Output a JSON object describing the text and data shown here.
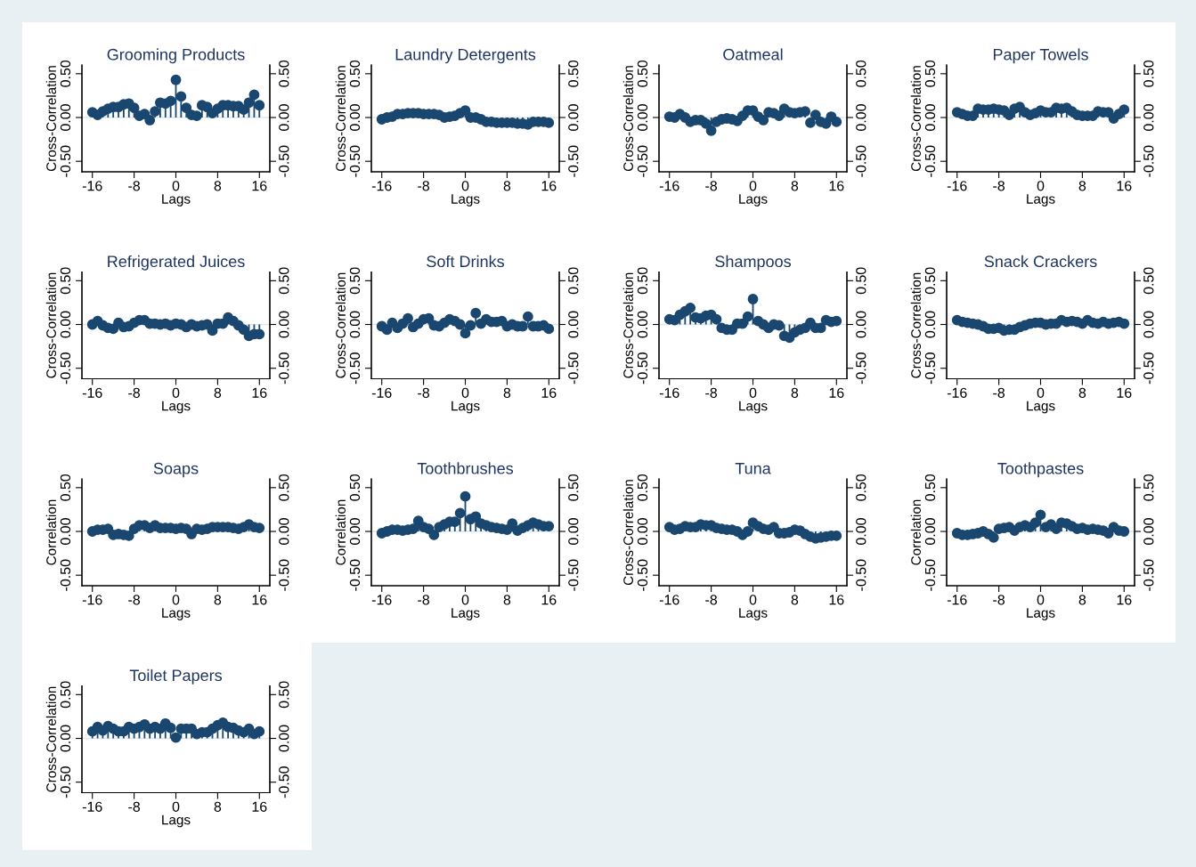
{
  "chart_data": [
    {
      "type": "lollipop",
      "title": "Grooming Products",
      "xlabel": "Lags",
      "ylabel": "Cross-Correlation",
      "color": "#1a476f",
      "marker": "circle",
      "xlim": [
        -18,
        18
      ],
      "xticks": [
        -16,
        -8,
        0,
        8,
        16
      ],
      "ylim": [
        -0.62,
        0.6
      ],
      "yticks": [
        {
          "value": -0.5,
          "label": "-0.50"
        },
        {
          "value": 0,
          "label": "0.00"
        },
        {
          "value": 0.5,
          "label": "0.50"
        }
      ],
      "y2lim": [
        -0.62,
        0.6
      ],
      "y2ticks": [
        {
          "value": -0.5,
          "label": "-0.50"
        },
        {
          "value": 0,
          "label": "0.00"
        },
        {
          "value": 0.5,
          "label": "0.50"
        }
      ],
      "x": [
        -16,
        -15,
        -14,
        -13,
        -12,
        -11,
        -10,
        -9,
        -8,
        -7,
        -6,
        -5,
        -4,
        -3,
        -2,
        -1,
        0,
        1,
        2,
        3,
        4,
        5,
        6,
        7,
        8,
        9,
        10,
        11,
        12,
        13,
        14,
        15,
        16
      ],
      "values": [
        0.06,
        0.03,
        0.07,
        0.1,
        0.12,
        0.12,
        0.15,
        0.16,
        0.11,
        0.02,
        0.04,
        -0.03,
        0.07,
        0.17,
        0.16,
        0.19,
        0.43,
        0.24,
        0.11,
        0.03,
        0.02,
        0.14,
        0.12,
        0.05,
        0.1,
        0.14,
        0.14,
        0.13,
        0.13,
        0.09,
        0.17,
        0.26,
        0.14
      ]
    },
    {
      "type": "lollipop",
      "title": "Laundry Detergents",
      "xlabel": "Lags",
      "ylabel": "Cross-Correlation",
      "color": "#1a476f",
      "marker": "circle",
      "xlim": [
        -18,
        18
      ],
      "xticks": [
        -16,
        -8,
        0,
        8,
        16
      ],
      "ylim": [
        -0.62,
        0.6
      ],
      "yticks": [
        {
          "value": -0.5,
          "label": "-0.50"
        },
        {
          "value": 0,
          "label": "0.00"
        },
        {
          "value": 0.5,
          "label": "0.50"
        }
      ],
      "y2lim": [
        -0.62,
        0.6
      ],
      "y2ticks": [
        {
          "value": -0.5,
          "label": "-0.50"
        },
        {
          "value": 0,
          "label": "0.00"
        },
        {
          "value": 0.5,
          "label": "0.50"
        }
      ],
      "x": [
        -16,
        -15,
        -14,
        -13,
        -12,
        -11,
        -10,
        -9,
        -8,
        -7,
        -6,
        -5,
        -4,
        -3,
        -2,
        -1,
        0,
        1,
        2,
        3,
        4,
        5,
        6,
        7,
        8,
        9,
        10,
        11,
        12,
        13,
        14,
        15,
        16
      ],
      "values": [
        -0.02,
        0.0,
        0.01,
        0.04,
        0.04,
        0.05,
        0.05,
        0.05,
        0.04,
        0.04,
        0.04,
        0.03,
        0.0,
        0.01,
        0.02,
        0.05,
        0.08,
        0.0,
        0.0,
        -0.02,
        -0.05,
        -0.05,
        -0.06,
        -0.06,
        -0.06,
        -0.06,
        -0.07,
        -0.07,
        -0.08,
        -0.05,
        -0.05,
        -0.05,
        -0.06
      ]
    },
    {
      "type": "lollipop",
      "title": "Oatmeal",
      "xlabel": "Lags",
      "ylabel": "Cross-Correlation",
      "color": "#1a476f",
      "marker": "circle",
      "xlim": [
        -18,
        18
      ],
      "xticks": [
        -16,
        -8,
        0,
        8,
        16
      ],
      "ylim": [
        -0.62,
        0.6
      ],
      "yticks": [
        {
          "value": -0.5,
          "label": "-0.50"
        },
        {
          "value": 0,
          "label": "0.00"
        },
        {
          "value": 0.5,
          "label": "0.50"
        }
      ],
      "y2lim": [
        -0.62,
        0.6
      ],
      "y2ticks": [
        {
          "value": -0.5,
          "label": "-0.50"
        },
        {
          "value": 0,
          "label": "0.00"
        },
        {
          "value": 0.5,
          "label": "0.50"
        }
      ],
      "x": [
        -16,
        -15,
        -14,
        -13,
        -12,
        -11,
        -10,
        -9,
        -8,
        -7,
        -6,
        -5,
        -4,
        -3,
        -2,
        -1,
        0,
        1,
        2,
        3,
        4,
        5,
        6,
        7,
        8,
        9,
        10,
        11,
        12,
        13,
        14,
        15,
        16
      ],
      "values": [
        0.01,
        0.0,
        0.04,
        0.0,
        -0.05,
        -0.03,
        -0.03,
        -0.07,
        -0.15,
        -0.05,
        -0.02,
        -0.01,
        -0.02,
        -0.04,
        0.02,
        0.08,
        0.08,
        0.01,
        -0.03,
        0.06,
        0.05,
        0.02,
        0.1,
        0.06,
        0.05,
        0.06,
        0.07,
        -0.06,
        0.03,
        -0.05,
        -0.07,
        0.01,
        -0.05
      ]
    },
    {
      "type": "lollipop",
      "title": "Paper Towels",
      "xlabel": "Lags",
      "ylabel": "Cross-Correlation",
      "color": "#1a476f",
      "marker": "circle",
      "xlim": [
        -18,
        18
      ],
      "xticks": [
        -16,
        -8,
        0,
        8,
        16
      ],
      "ylim": [
        -0.62,
        0.6
      ],
      "yticks": [
        {
          "value": -0.5,
          "label": "-0.50"
        },
        {
          "value": 0,
          "label": "0.00"
        },
        {
          "value": 0.5,
          "label": "0.50"
        }
      ],
      "y2lim": [
        -0.62,
        0.6
      ],
      "y2ticks": [
        {
          "value": -0.5,
          "label": "-0.50"
        },
        {
          "value": 0,
          "label": "0.00"
        },
        {
          "value": 0.5,
          "label": "0.50"
        }
      ],
      "x": [
        -16,
        -15,
        -14,
        -13,
        -12,
        -11,
        -10,
        -9,
        -8,
        -7,
        -6,
        -5,
        -4,
        -3,
        -2,
        -1,
        0,
        1,
        2,
        3,
        4,
        5,
        6,
        7,
        8,
        9,
        10,
        11,
        12,
        13,
        14,
        15,
        16
      ],
      "values": [
        0.06,
        0.04,
        0.02,
        0.02,
        0.1,
        0.09,
        0.09,
        0.1,
        0.09,
        0.08,
        0.03,
        0.1,
        0.12,
        0.06,
        0.03,
        0.05,
        0.08,
        0.06,
        0.06,
        0.11,
        0.1,
        0.11,
        0.07,
        0.03,
        0.02,
        0.02,
        0.02,
        0.07,
        0.06,
        0.06,
        -0.01,
        0.04,
        0.09
      ]
    },
    {
      "type": "lollipop",
      "title": "Refrigerated Juices",
      "xlabel": "Lags",
      "ylabel": "Cross-Correlation",
      "color": "#1a476f",
      "marker": "circle",
      "xlim": [
        -18,
        18
      ],
      "xticks": [
        -16,
        -8,
        0,
        8,
        16
      ],
      "ylim": [
        -0.62,
        0.6
      ],
      "yticks": [
        {
          "value": -0.5,
          "label": "-0.50"
        },
        {
          "value": 0,
          "label": "0.00"
        },
        {
          "value": 0.5,
          "label": "0.50"
        }
      ],
      "y2lim": [
        -0.62,
        0.6
      ],
      "y2ticks": [
        {
          "value": -0.5,
          "label": "-0.50"
        },
        {
          "value": 0,
          "label": "0.00"
        },
        {
          "value": 0.5,
          "label": "0.50"
        }
      ],
      "x": [
        -16,
        -15,
        -14,
        -13,
        -12,
        -11,
        -10,
        -9,
        -8,
        -7,
        -6,
        -5,
        -4,
        -3,
        -2,
        -1,
        0,
        1,
        2,
        3,
        4,
        5,
        6,
        7,
        8,
        9,
        10,
        11,
        12,
        13,
        14,
        15,
        16
      ],
      "values": [
        0.0,
        0.04,
        -0.01,
        -0.04,
        -0.05,
        0.02,
        -0.03,
        -0.02,
        0.02,
        0.05,
        0.05,
        0.01,
        0.01,
        0.0,
        0.01,
        -0.01,
        0.01,
        0.0,
        -0.03,
        0.0,
        -0.02,
        -0.01,
        0.0,
        -0.07,
        0.01,
        0.01,
        0.08,
        0.04,
        -0.01,
        -0.06,
        -0.13,
        -0.11,
        -0.11
      ]
    },
    {
      "type": "lollipop",
      "title": "Soft Drinks",
      "xlabel": "Lags",
      "ylabel": "Cross-Correlation",
      "color": "#1a476f",
      "marker": "circle",
      "xlim": [
        -18,
        18
      ],
      "xticks": [
        -16,
        -8,
        0,
        8,
        16
      ],
      "ylim": [
        -0.62,
        0.6
      ],
      "yticks": [
        {
          "value": -0.5,
          "label": "-0.50"
        },
        {
          "value": 0,
          "label": "0.00"
        },
        {
          "value": 0.5,
          "label": "0.50"
        }
      ],
      "y2lim": [
        -0.62,
        0.6
      ],
      "y2ticks": [
        {
          "value": -0.5,
          "label": "-0.50"
        },
        {
          "value": 0,
          "label": "0.00"
        },
        {
          "value": 0.5,
          "label": "0.50"
        }
      ],
      "x": [
        -16,
        -15,
        -14,
        -13,
        -12,
        -11,
        -10,
        -9,
        -8,
        -7,
        -6,
        -5,
        -4,
        -3,
        -2,
        -1,
        0,
        1,
        2,
        3,
        4,
        5,
        6,
        7,
        8,
        9,
        10,
        11,
        12,
        13,
        14,
        15,
        16
      ],
      "values": [
        -0.02,
        -0.06,
        0.02,
        -0.04,
        0.01,
        0.07,
        -0.03,
        0.01,
        0.06,
        0.07,
        -0.01,
        -0.02,
        0.02,
        0.06,
        0.04,
        0.0,
        -0.1,
        -0.01,
        0.13,
        0.01,
        0.06,
        0.03,
        0.03,
        0.04,
        -0.02,
        0.0,
        -0.02,
        -0.02,
        0.09,
        -0.02,
        -0.02,
        -0.01,
        -0.05
      ]
    },
    {
      "type": "lollipop",
      "title": "Shampoos",
      "xlabel": "Lags",
      "ylabel": "Cross-Correlation",
      "color": "#1a476f",
      "marker": "circle",
      "xlim": [
        -18,
        18
      ],
      "xticks": [
        -16,
        -8,
        0,
        8,
        16
      ],
      "ylim": [
        -0.62,
        0.6
      ],
      "yticks": [
        {
          "value": -0.5,
          "label": "-0.50"
        },
        {
          "value": 0,
          "label": "0.00"
        },
        {
          "value": 0.5,
          "label": "0.50"
        }
      ],
      "y2lim": [
        -0.62,
        0.6
      ],
      "y2ticks": [
        {
          "value": -0.5,
          "label": "-0.50"
        },
        {
          "value": 0,
          "label": "0.00"
        },
        {
          "value": 0.5,
          "label": "0.50"
        }
      ],
      "x": [
        -16,
        -15,
        -14,
        -13,
        -12,
        -11,
        -10,
        -9,
        -8,
        -7,
        -6,
        -5,
        -4,
        -3,
        -2,
        -1,
        0,
        1,
        2,
        3,
        4,
        5,
        6,
        7,
        8,
        9,
        10,
        11,
        12,
        13,
        14,
        15,
        16
      ],
      "values": [
        0.06,
        0.05,
        0.11,
        0.15,
        0.19,
        0.08,
        0.07,
        0.1,
        0.11,
        0.06,
        -0.04,
        -0.06,
        -0.06,
        0.01,
        0.01,
        0.09,
        0.29,
        0.04,
        0.0,
        -0.04,
        0.0,
        -0.01,
        -0.13,
        -0.15,
        -0.09,
        -0.06,
        -0.04,
        0.02,
        -0.04,
        -0.04,
        0.05,
        0.03,
        0.04
      ]
    },
    {
      "type": "lollipop",
      "title": "Snack Crackers",
      "xlabel": "Lags",
      "ylabel": "Cross-Correlation",
      "color": "#1a476f",
      "marker": "circle",
      "xlim": [
        -18,
        18
      ],
      "xticks": [
        -16,
        -8,
        0,
        8,
        16
      ],
      "ylim": [
        -0.62,
        0.6
      ],
      "yticks": [
        {
          "value": -0.5,
          "label": "-0.50"
        },
        {
          "value": 0,
          "label": "0.00"
        },
        {
          "value": 0.5,
          "label": "0.50"
        }
      ],
      "y2lim": [
        -0.62,
        0.6
      ],
      "y2ticks": [
        {
          "value": -0.5,
          "label": "-0.50"
        },
        {
          "value": 0,
          "label": "0.00"
        },
        {
          "value": 0.5,
          "label": "0.50"
        }
      ],
      "x": [
        -16,
        -15,
        -14,
        -13,
        -12,
        -11,
        -10,
        -9,
        -8,
        -7,
        -6,
        -5,
        -4,
        -3,
        -2,
        -1,
        0,
        1,
        2,
        3,
        4,
        5,
        6,
        7,
        8,
        9,
        10,
        11,
        12,
        13,
        14,
        15,
        16
      ],
      "values": [
        0.05,
        0.03,
        0.02,
        0.01,
        0.0,
        -0.02,
        -0.05,
        -0.05,
        -0.04,
        -0.07,
        -0.06,
        -0.06,
        -0.03,
        -0.01,
        0.01,
        0.02,
        0.02,
        0.0,
        0.01,
        0.01,
        0.05,
        0.03,
        0.04,
        0.03,
        0.01,
        0.05,
        0.02,
        0.01,
        0.03,
        0.01,
        0.02,
        0.03,
        0.01
      ]
    },
    {
      "type": "lollipop",
      "title": "Soaps",
      "xlabel": "Lags",
      "ylabel": "Correlation",
      "color": "#1a476f",
      "marker": "circle",
      "xlim": [
        -18,
        18
      ],
      "xticks": [
        -16,
        -8,
        0,
        8,
        16
      ],
      "ylim": [
        -0.62,
        0.6
      ],
      "yticks": [
        {
          "value": -0.5,
          "label": "-0.50"
        },
        {
          "value": 0,
          "label": "0.00"
        },
        {
          "value": 0.5,
          "label": "0.50"
        }
      ],
      "y2lim": [
        -0.62,
        0.6
      ],
      "y2ticks": [
        {
          "value": -0.5,
          "label": "-0.50"
        },
        {
          "value": 0,
          "label": "0.00"
        },
        {
          "value": 0.5,
          "label": "0.50"
        }
      ],
      "x": [
        -16,
        -15,
        -14,
        -13,
        -12,
        -11,
        -10,
        -9,
        -8,
        -7,
        -6,
        -5,
        -4,
        -3,
        -2,
        -1,
        0,
        1,
        2,
        3,
        4,
        5,
        6,
        7,
        8,
        9,
        10,
        11,
        12,
        13,
        14,
        15,
        16
      ],
      "values": [
        0.0,
        0.02,
        0.02,
        0.03,
        -0.04,
        -0.03,
        -0.04,
        -0.05,
        0.03,
        0.07,
        0.07,
        0.04,
        0.07,
        0.04,
        0.04,
        0.04,
        0.03,
        0.04,
        0.03,
        -0.03,
        0.03,
        0.02,
        0.03,
        0.05,
        0.05,
        0.05,
        0.05,
        0.04,
        0.03,
        0.05,
        0.08,
        0.05,
        0.04
      ]
    },
    {
      "type": "lollipop",
      "title": "Toothbrushes",
      "xlabel": "Lags",
      "ylabel": "Correlation",
      "color": "#1a476f",
      "marker": "circle",
      "xlim": [
        -18,
        18
      ],
      "xticks": [
        -16,
        -8,
        0,
        8,
        16
      ],
      "ylim": [
        -0.62,
        0.6
      ],
      "yticks": [
        {
          "value": -0.5,
          "label": "-0.50"
        },
        {
          "value": 0,
          "label": "0.00"
        },
        {
          "value": 0.5,
          "label": "0.50"
        }
      ],
      "y2lim": [
        -0.62,
        0.6
      ],
      "y2ticks": [
        {
          "value": -0.5,
          "label": "-0.50"
        },
        {
          "value": 0,
          "label": "0.00"
        },
        {
          "value": 0.5,
          "label": "0.50"
        }
      ],
      "x": [
        -16,
        -15,
        -14,
        -13,
        -12,
        -11,
        -10,
        -9,
        -8,
        -7,
        -6,
        -5,
        -4,
        -3,
        -2,
        -1,
        0,
        1,
        2,
        3,
        4,
        5,
        6,
        7,
        8,
        9,
        10,
        11,
        12,
        13,
        14,
        15,
        16
      ],
      "values": [
        -0.02,
        0.0,
        0.02,
        0.02,
        0.01,
        0.02,
        0.03,
        0.12,
        0.05,
        0.03,
        -0.04,
        0.05,
        0.08,
        0.11,
        0.11,
        0.21,
        0.4,
        0.14,
        0.17,
        0.09,
        0.07,
        0.05,
        0.04,
        0.03,
        0.02,
        0.09,
        0.01,
        0.04,
        0.07,
        0.1,
        0.08,
        0.06,
        0.06
      ]
    },
    {
      "type": "lollipop",
      "title": "Tuna",
      "xlabel": "Lags",
      "ylabel": "Cross-Correlation",
      "color": "#1a476f",
      "marker": "circle",
      "xlim": [
        -18,
        18
      ],
      "xticks": [
        -16,
        -8,
        0,
        8,
        16
      ],
      "ylim": [
        -0.62,
        0.6
      ],
      "yticks": [
        {
          "value": -0.5,
          "label": "-0.50"
        },
        {
          "value": 0,
          "label": "0.00"
        },
        {
          "value": 0.5,
          "label": "0.50"
        }
      ],
      "y2lim": [
        -0.62,
        0.6
      ],
      "y2ticks": [
        {
          "value": -0.5,
          "label": "-0.50"
        },
        {
          "value": 0,
          "label": "0.00"
        },
        {
          "value": 0.5,
          "label": "0.50"
        }
      ],
      "x": [
        -16,
        -15,
        -14,
        -13,
        -12,
        -11,
        -10,
        -9,
        -8,
        -7,
        -6,
        -5,
        -4,
        -3,
        -2,
        -1,
        0,
        1,
        2,
        3,
        4,
        5,
        6,
        7,
        8,
        9,
        10,
        11,
        12,
        13,
        14,
        15,
        16
      ],
      "values": [
        0.05,
        0.02,
        0.03,
        0.06,
        0.05,
        0.05,
        0.08,
        0.07,
        0.07,
        0.04,
        0.03,
        0.02,
        0.02,
        0.0,
        -0.04,
        0.0,
        0.1,
        0.06,
        0.03,
        0.02,
        0.05,
        -0.02,
        -0.02,
        -0.01,
        0.02,
        0.01,
        -0.03,
        -0.06,
        -0.08,
        -0.07,
        -0.06,
        -0.05,
        -0.05
      ]
    },
    {
      "type": "lollipop",
      "title": "Toothpastes",
      "xlabel": "Lags",
      "ylabel": "Correlation",
      "color": "#1a476f",
      "marker": "circle",
      "xlim": [
        -18,
        18
      ],
      "xticks": [
        -16,
        -8,
        0,
        8,
        16
      ],
      "ylim": [
        -0.62,
        0.6
      ],
      "yticks": [
        {
          "value": -0.5,
          "label": "-0.50"
        },
        {
          "value": 0,
          "label": "0.00"
        },
        {
          "value": 0.5,
          "label": "0.50"
        }
      ],
      "y2lim": [
        -0.62,
        0.6
      ],
      "y2ticks": [
        {
          "value": -0.5,
          "label": "-0.50"
        },
        {
          "value": 0,
          "label": "0.00"
        },
        {
          "value": 0.5,
          "label": "0.50"
        }
      ],
      "x": [
        -16,
        -15,
        -14,
        -13,
        -12,
        -11,
        -10,
        -9,
        -8,
        -7,
        -6,
        -5,
        -4,
        -3,
        -2,
        -1,
        0,
        1,
        2,
        3,
        4,
        5,
        6,
        7,
        8,
        9,
        10,
        11,
        12,
        13,
        14,
        15,
        16
      ],
      "values": [
        -0.02,
        -0.04,
        -0.04,
        -0.03,
        -0.02,
        0.0,
        -0.03,
        -0.07,
        0.03,
        0.04,
        0.05,
        0.01,
        0.05,
        0.07,
        0.05,
        0.1,
        0.19,
        0.05,
        0.08,
        0.03,
        0.1,
        0.09,
        0.06,
        0.03,
        0.04,
        0.02,
        0.03,
        0.02,
        0.01,
        -0.02,
        0.05,
        0.01,
        0.0
      ]
    },
    {
      "type": "lollipop",
      "title": "Toilet Papers",
      "xlabel": "Lags",
      "ylabel": "Cross-Correlation",
      "color": "#1a476f",
      "marker": "circle",
      "xlim": [
        -18,
        18
      ],
      "xticks": [
        -16,
        -8,
        0,
        8,
        16
      ],
      "ylim": [
        -0.62,
        0.6
      ],
      "yticks": [
        {
          "value": -0.5,
          "label": "-0.50"
        },
        {
          "value": 0,
          "label": "0.00"
        },
        {
          "value": 0.5,
          "label": "0.50"
        }
      ],
      "y2lim": [
        -0.62,
        0.6
      ],
      "y2ticks": [
        {
          "value": -0.5,
          "label": "-0.50"
        },
        {
          "value": 0,
          "label": "0.00"
        },
        {
          "value": 0.5,
          "label": "0.50"
        }
      ],
      "x": [
        -16,
        -15,
        -14,
        -13,
        -12,
        -11,
        -10,
        -9,
        -8,
        -7,
        -6,
        -5,
        -4,
        -3,
        -2,
        -1,
        0,
        1,
        2,
        3,
        4,
        5,
        6,
        7,
        8,
        9,
        10,
        11,
        12,
        13,
        14,
        15,
        16
      ],
      "values": [
        0.08,
        0.13,
        0.09,
        0.14,
        0.11,
        0.08,
        0.08,
        0.13,
        0.11,
        0.13,
        0.16,
        0.11,
        0.13,
        0.11,
        0.17,
        0.12,
        0.01,
        0.11,
        0.11,
        0.11,
        0.05,
        0.07,
        0.07,
        0.11,
        0.15,
        0.18,
        0.13,
        0.12,
        0.09,
        0.07,
        0.11,
        0.05,
        0.08
      ]
    }
  ]
}
